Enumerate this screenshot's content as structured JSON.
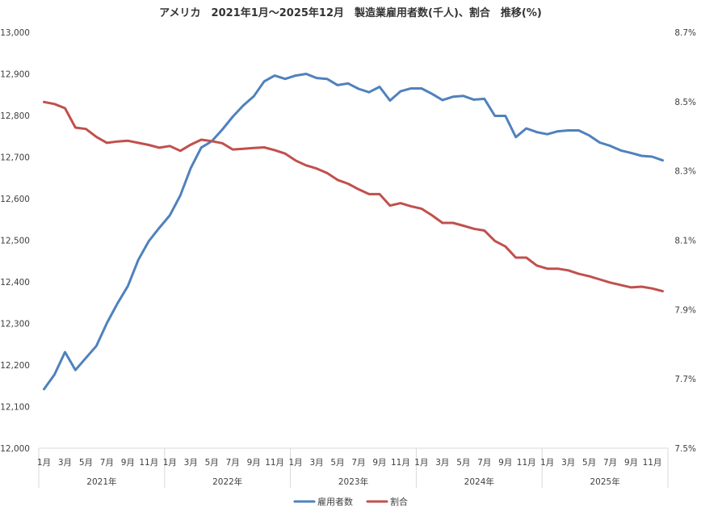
{
  "chart_data": {
    "type": "line",
    "title": "アメリカ　2021年1月～2025年12月　製造業雇用者数(千人)、割合　推移(%)",
    "xlabel": "",
    "ylabel": "",
    "grid": false,
    "legend_position": "bottom",
    "month_tick_labels": [
      "1月",
      "3月",
      "5月",
      "7月",
      "9月",
      "11月"
    ],
    "year_labels": [
      "2021年",
      "2022年",
      "2023年",
      "2024年",
      "2025年"
    ],
    "y_left": {
      "min": 12000,
      "max": 13000,
      "step": 100,
      "tick_labels": [
        "12,000",
        "12,100",
        "12,200",
        "12,300",
        "12,400",
        "12,500",
        "12,600",
        "12,700",
        "12,800",
        "12,900",
        "13,000"
      ]
    },
    "y_right": {
      "min": 7.5,
      "max": 8.7,
      "tick_values": [
        7.5,
        7.7,
        7.9,
        8.1,
        8.3,
        8.5,
        8.7
      ],
      "tick_labels": [
        "7.5%",
        "7.7%",
        "7.9%",
        "8.1%",
        "8.3%",
        "8.5%",
        "8.7%"
      ]
    },
    "series": [
      {
        "name": "雇用者数",
        "axis": "left",
        "color": "#4f81bd",
        "values": [
          12142,
          12177,
          12231,
          12188,
          12217,
          12246,
          12301,
          12348,
          12390,
          12453,
          12498,
          12530,
          12560,
          12608,
          12674,
          12723,
          12738,
          12766,
          12797,
          12824,
          12846,
          12882,
          12896,
          12888,
          12896,
          12900,
          12890,
          12888,
          12873,
          12877,
          12864,
          12856,
          12869,
          12836,
          12858,
          12865,
          12865,
          12852,
          12837,
          12845,
          12847,
          12838,
          12840,
          12799,
          12799,
          12748,
          12769,
          12760,
          12755,
          12762,
          12764,
          12764,
          12752,
          12735,
          12727,
          12716,
          12710,
          12703,
          12701,
          12692
        ]
      },
      {
        "name": "割合",
        "axis": "right",
        "color": "#c0504d",
        "values": [
          8.499,
          8.493,
          8.481,
          8.425,
          8.421,
          8.398,
          8.381,
          8.385,
          8.387,
          8.381,
          8.375,
          8.367,
          8.372,
          8.358,
          8.376,
          8.39,
          8.386,
          8.38,
          8.362,
          8.364,
          8.366,
          8.368,
          8.36,
          8.35,
          8.33,
          8.316,
          8.307,
          8.294,
          8.274,
          8.263,
          8.247,
          8.233,
          8.233,
          8.2,
          8.207,
          8.198,
          8.191,
          8.172,
          8.15,
          8.15,
          8.142,
          8.133,
          8.128,
          8.098,
          8.082,
          8.05,
          8.05,
          8.027,
          8.018,
          8.018,
          8.013,
          8.003,
          7.996,
          7.987,
          7.978,
          7.971,
          7.964,
          7.966,
          7.961,
          7.953
        ]
      }
    ]
  }
}
